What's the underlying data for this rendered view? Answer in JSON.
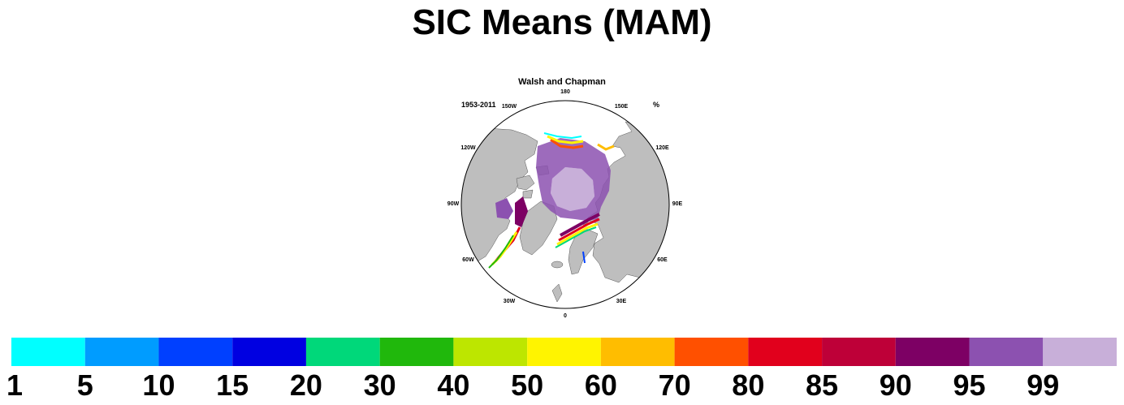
{
  "title": "SIC Means (MAM)",
  "panel": {
    "title": "Walsh and Chapman",
    "left_label": "1953-2011",
    "right_label": "%",
    "longitude_labels": [
      "180",
      "150E",
      "120E",
      "90E",
      "60E",
      "30E",
      "0",
      "30W",
      "60W",
      "90W",
      "120W",
      "150W"
    ]
  },
  "colors": {
    "land": "#bebebe",
    "ocean": "#ffffff",
    "outline": "#000000"
  },
  "colorbar": {
    "colors": [
      "#00ffff",
      "#009cff",
      "#0040ff",
      "#0000e1",
      "#00d87a",
      "#20b80c",
      "#bde600",
      "#fff400",
      "#ffbd00",
      "#ff5000",
      "#e1001c",
      "#be0038",
      "#7d0064",
      "#8c51b0",
      "#c8afd9"
    ],
    "labels": [
      "1",
      "5",
      "10",
      "15",
      "20",
      "30",
      "40",
      "50",
      "60",
      "70",
      "80",
      "85",
      "90",
      "95",
      "99"
    ]
  }
}
